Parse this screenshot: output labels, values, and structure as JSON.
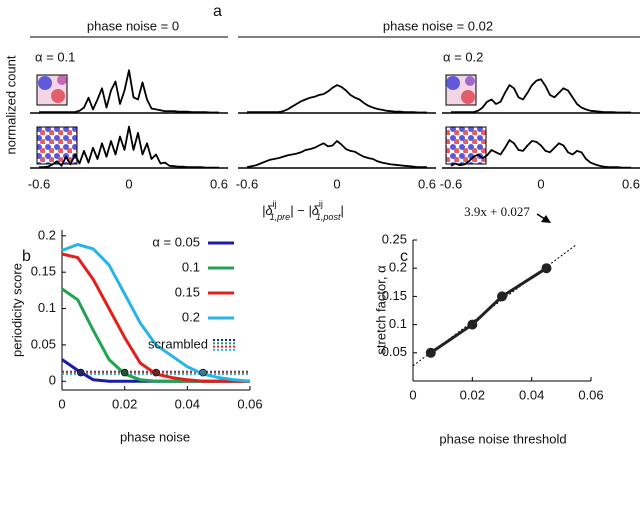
{
  "chart_data": [
    {
      "type": "line",
      "label": "a",
      "headers": [
        "phase noise = 0",
        "phase noise = 0.02"
      ],
      "annotations": [
        "α = 0.1",
        "α = 0.2"
      ],
      "ylabel": "normalized count",
      "xlabel": [
        "|δ",
        "ij",
        "1,pre",
        "| − |δ",
        "ij",
        "1,post",
        "|"
      ],
      "x": [
        -0.6,
        -0.57,
        -0.54,
        -0.51,
        -0.48,
        -0.45,
        -0.42,
        -0.39,
        -0.36,
        -0.33,
        -0.3,
        -0.27,
        -0.24,
        -0.21,
        -0.18,
        -0.15,
        -0.12,
        -0.09,
        -0.06,
        -0.03,
        0,
        0.03,
        0.06,
        0.09,
        0.12,
        0.15,
        0.18,
        0.21,
        0.24,
        0.27,
        0.3,
        0.33,
        0.36,
        0.39,
        0.42,
        0.45,
        0.48,
        0.51,
        0.54,
        0.57,
        0.6
      ],
      "xlim": [
        -0.66,
        0.66
      ],
      "xticks": [
        -0.6,
        0,
        0.6
      ],
      "ylim": [
        0,
        1
      ],
      "color": "#000000",
      "series": [
        {
          "values": [
            0.02,
            0.02,
            0.02,
            0.02,
            0.02,
            0.02,
            0.02,
            0.02,
            0.02,
            0.05,
            0.12,
            0.34,
            0.08,
            0.3,
            0.55,
            0.12,
            0.5,
            0.7,
            0.2,
            0.5,
            0.95,
            0.35,
            0.3,
            0.68,
            0.3,
            0.1,
            0.08,
            0.06,
            0.04,
            0.04,
            0.04,
            0.03,
            0.03,
            0.03,
            0.02,
            0.02,
            0.02,
            0.02,
            0.01,
            0.01,
            0.01
          ]
        },
        {
          "values": [
            0.02,
            0.02,
            0.02,
            0.02,
            0.02,
            0.02,
            0.02,
            0.02,
            0.04,
            0.08,
            0.14,
            0.2,
            0.26,
            0.3,
            0.34,
            0.36,
            0.4,
            0.42,
            0.48,
            0.56,
            0.62,
            0.58,
            0.5,
            0.4,
            0.34,
            0.3,
            0.22,
            0.16,
            0.12,
            0.09,
            0.07,
            0.05,
            0.04,
            0.03,
            0.03,
            0.02,
            0.02,
            0.02,
            0.01,
            0.01,
            0.01
          ]
        },
        {
          "values": [
            0.02,
            0.02,
            0.02,
            0.02,
            0.02,
            0.02,
            0.05,
            0.12,
            0.25,
            0.3,
            0.2,
            0.25,
            0.45,
            0.62,
            0.55,
            0.35,
            0.3,
            0.45,
            0.62,
            0.72,
            0.75,
            0.6,
            0.4,
            0.35,
            0.45,
            0.55,
            0.5,
            0.35,
            0.2,
            0.12,
            0.08,
            0.05,
            0.04,
            0.03,
            0.02,
            0.02,
            0.02,
            0.01,
            0.01,
            0.01,
            0.01
          ]
        },
        {
          "values": [
            0.02,
            0.02,
            0.03,
            0.08,
            0.15,
            0.05,
            0.25,
            0.08,
            0.3,
            0.1,
            0.38,
            0.12,
            0.45,
            0.2,
            0.55,
            0.25,
            0.6,
            0.3,
            0.7,
            0.4,
            0.92,
            0.4,
            0.78,
            0.3,
            0.55,
            0.2,
            0.3,
            0.1,
            0.12,
            0.05,
            0.04,
            0.03,
            0.03,
            0.02,
            0.02,
            0.02,
            0.02,
            0.01,
            0.01,
            0.01,
            0.01
          ]
        },
        {
          "values": [
            0.02,
            0.04,
            0.06,
            0.1,
            0.14,
            0.18,
            0.2,
            0.22,
            0.25,
            0.28,
            0.3,
            0.32,
            0.35,
            0.4,
            0.42,
            0.45,
            0.5,
            0.55,
            0.48,
            0.5,
            0.6,
            0.52,
            0.42,
            0.38,
            0.36,
            0.3,
            0.25,
            0.22,
            0.2,
            0.15,
            0.12,
            0.1,
            0.08,
            0.07,
            0.06,
            0.05,
            0.04,
            0.03,
            0.02,
            0.02,
            0.02
          ]
        },
        {
          "values": [
            0.05,
            0.1,
            0.06,
            0.08,
            0.15,
            0.25,
            0.3,
            0.22,
            0.28,
            0.4,
            0.35,
            0.3,
            0.45,
            0.62,
            0.55,
            0.4,
            0.38,
            0.5,
            0.6,
            0.58,
            0.5,
            0.38,
            0.35,
            0.45,
            0.55,
            0.5,
            0.35,
            0.3,
            0.38,
            0.35,
            0.2,
            0.12,
            0.08,
            0.05,
            0.03,
            0.02,
            0.02,
            0.02,
            0.01,
            0.01,
            0.01
          ]
        }
      ]
    },
    {
      "type": "line",
      "label": "b",
      "xlabel": "phase noise",
      "ylabel": "periodicity score",
      "x": [
        0,
        0.005,
        0.01,
        0.015,
        0.02,
        0.025,
        0.03,
        0.035,
        0.04,
        0.045,
        0.05,
        0.055,
        0.06
      ],
      "xlim": [
        0,
        0.06
      ],
      "xticks": [
        0,
        0.02,
        0.04,
        0.06
      ],
      "ylim": [
        -0.012,
        0.208
      ],
      "yticks": [
        0,
        0.05,
        0.1,
        0.15,
        0.2
      ],
      "series": [
        {
          "name": "α = 0.05",
          "color": "#1c1ca6",
          "values": [
            0.03,
            0.015,
            0.002,
            0,
            0,
            0,
            0,
            0,
            0,
            0,
            0,
            0,
            0
          ],
          "marker": {
            "x": 0.006,
            "y": 0.012,
            "color": "#1a2a70"
          }
        },
        {
          "name": "0.1",
          "color": "#21a34f",
          "values": [
            0.127,
            0.112,
            0.07,
            0.03,
            0.01,
            0.002,
            0,
            0,
            0,
            0,
            0,
            0,
            0
          ],
          "marker": {
            "x": 0.02,
            "y": 0.012,
            "color": "#1c5a30"
          }
        },
        {
          "name": "0.15",
          "color": "#e0201c",
          "values": [
            0.175,
            0.17,
            0.14,
            0.1,
            0.06,
            0.025,
            0.01,
            0.005,
            0.002,
            0,
            0,
            0,
            0
          ],
          "marker": {
            "x": 0.03,
            "y": 0.012,
            "color": "#7a2020"
          }
        },
        {
          "name": "0.2",
          "color": "#27b4e6",
          "values": [
            0.18,
            0.188,
            0.182,
            0.16,
            0.12,
            0.08,
            0.05,
            0.035,
            0.02,
            0.01,
            0.005,
            0.002,
            0
          ],
          "marker": {
            "x": 0.045,
            "y": 0.012,
            "color": "#3a7a90"
          }
        }
      ],
      "scrambled": {
        "name": "scrambled",
        "series": [
          {
            "color": "#1c1ca6",
            "values": [
              0.013,
              0.013,
              0.013,
              0.013,
              0.013,
              0.013,
              0.013,
              0.013,
              0.013,
              0.013,
              0.013,
              0.013,
              0.013
            ]
          },
          {
            "color": "#21a34f",
            "values": [
              0.012,
              0.012,
              0.012,
              0.012,
              0.012,
              0.012,
              0.012,
              0.012,
              0.012,
              0.012,
              0.012,
              0.012,
              0.012
            ]
          },
          {
            "color": "#e0201c",
            "values": [
              0.011,
              0.011,
              0.011,
              0.011,
              0.011,
              0.011,
              0.011,
              0.011,
              0.011,
              0.011,
              0.011,
              0.011,
              0.011
            ]
          },
          {
            "color": "#27b4e6",
            "values": [
              0.01,
              0.01,
              0.01,
              0.01,
              0.01,
              0.01,
              0.01,
              0.01,
              0.01,
              0.01,
              0.01,
              0.01,
              0.01
            ]
          }
        ]
      }
    },
    {
      "type": "scatter",
      "label": "c",
      "xlabel": "phase noise threshold",
      "ylabel": "stretch factor, α",
      "x": [
        0.006,
        0.02,
        0.03,
        0.045
      ],
      "values": [
        0.05,
        0.1,
        0.15,
        0.2
      ],
      "color": "#222222",
      "xlim": [
        0,
        0.06
      ],
      "xticks": [
        0,
        0.02,
        0.04,
        0.06
      ],
      "ylim": [
        0,
        0.25
      ],
      "yticks": [
        0.05,
        0.1,
        0.15,
        0.2,
        0.25
      ],
      "fit": {
        "label": "3.9x + 0.027",
        "x": [
          0,
          0.055
        ],
        "values": [
          0.027,
          0.2415
        ]
      }
    }
  ]
}
